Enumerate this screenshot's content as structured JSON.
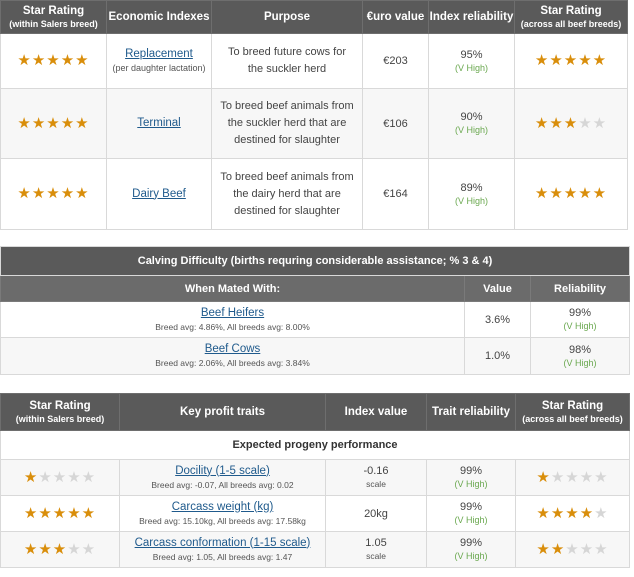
{
  "table1": {
    "headers": {
      "star_rating": "Star Rating",
      "star_rating_sub": "(within Salers breed)",
      "economic_indexes": "Economic Indexes",
      "purpose": "Purpose",
      "euro_value": "€uro value",
      "index_reliability": "Index reliability",
      "star_rating_all": "Star Rating",
      "star_rating_all_sub": "(across all beef breeds)"
    },
    "rows": [
      {
        "stars_within": 5,
        "index": "Replacement",
        "index_sub": "(per daughter lactation)",
        "purpose": "To breed future cows for the suckler herd",
        "value": "€203",
        "reliability": "95%",
        "reliability_level": "(V High)",
        "stars_all": 5
      },
      {
        "stars_within": 5,
        "index": "Terminal",
        "index_sub": "",
        "purpose": "To breed beef animals from the suckler herd that are destined for slaughter",
        "value": "€106",
        "reliability": "90%",
        "reliability_level": "(V High)",
        "stars_all": 3
      },
      {
        "stars_within": 5,
        "index": "Dairy Beef",
        "index_sub": "",
        "purpose": "To breed beef animals from the dairy herd that are destined for slaughter",
        "value": "€164",
        "reliability": "89%",
        "reliability_level": "(V High)",
        "stars_all": 5
      }
    ]
  },
  "table2": {
    "title": "Calving Difficulty (births requring considerable assistance; % 3 & 4)",
    "headers": {
      "mated_with": "When Mated With:",
      "value": "Value",
      "reliability": "Reliability"
    },
    "rows": [
      {
        "label": "Beef Heifers",
        "avg": "Breed avg: 4.86%, All breeds avg: 8.00%",
        "value": "3.6%",
        "reliability": "99%",
        "reliability_level": "(V High)"
      },
      {
        "label": "Beef Cows",
        "avg": "Breed avg: 2.06%, All breeds avg: 3.84%",
        "value": "1.0%",
        "reliability": "98%",
        "reliability_level": "(V High)"
      }
    ]
  },
  "table3": {
    "headers": {
      "star_rating": "Star Rating",
      "star_rating_sub": "(within Salers breed)",
      "key_traits": "Key profit traits",
      "index_value": "Index value",
      "trait_reliability": "Trait reliability",
      "star_rating_all": "Star Rating",
      "star_rating_all_sub": "(across all beef breeds)"
    },
    "section_title": "Expected progeny performance",
    "rows": [
      {
        "stars_within": 1,
        "trait": "Docility (1-5 scale)",
        "avg": "Breed avg: -0.07, All breeds avg: 0.02",
        "value": "-0.16",
        "unit": "scale",
        "reliability": "99%",
        "reliability_level": "(V High)",
        "stars_all": 1
      },
      {
        "stars_within": 5,
        "trait": "Carcass weight (kg)",
        "avg": "Breed avg: 15.10kg, All breeds avg: 17.58kg",
        "value": "20kg",
        "unit": "",
        "reliability": "99%",
        "reliability_level": "(V High)",
        "stars_all": 4
      },
      {
        "stars_within": 3,
        "trait": "Carcass conformation (1-15 scale)",
        "avg": "Breed avg: 1.05, All breeds avg: 1.47",
        "value": "1.05",
        "unit": "scale",
        "reliability": "99%",
        "reliability_level": "(V High)",
        "stars_all": 2
      }
    ]
  },
  "colors": {
    "header_bg": "#5a5a5a",
    "star_on": "#d98e0b",
    "star_off": "#d6d6d6",
    "link": "#1f5a8c",
    "reliability_level": "#6aa84f"
  }
}
